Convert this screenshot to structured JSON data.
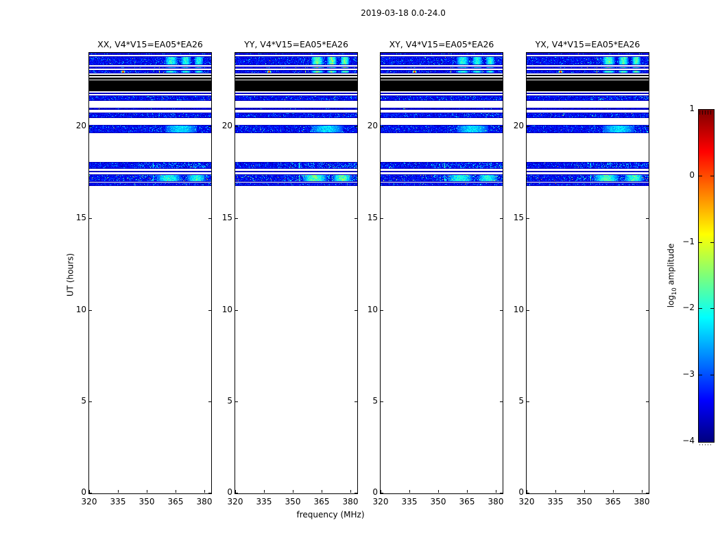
{
  "figure": {
    "title": "2019-03-18 0.0-24.0",
    "background": "#ffffff"
  },
  "axes": {
    "xlabel": "frequency (MHz)",
    "ylabel": "UT (hours)",
    "x_tick_labels": [
      "320",
      "335",
      "350",
      "365",
      "380"
    ],
    "y_tick_labels": [
      "0",
      "5",
      "10",
      "15",
      "20"
    ]
  },
  "panels": [
    {
      "name": "XX",
      "title": "XX, V4*V15=EA05*EA26"
    },
    {
      "name": "YY",
      "title": "YY, V4*V15=EA05*EA26"
    },
    {
      "name": "XY",
      "title": "XY, V4*V15=EA05*EA26"
    },
    {
      "name": "YX",
      "title": "YX, V4*V15=EA05*EA26"
    }
  ],
  "colorbar": {
    "label_prefix": "log",
    "label_sub": "10",
    "label_suffix": " amplitude",
    "tick_labels": [
      "1",
      "0",
      "−1",
      "−2",
      "−3",
      "−4"
    ],
    "colormap": "jet",
    "vmin": -4,
    "vmax": 1
  },
  "chart_data": {
    "type": "heatmap",
    "title": "2019-03-18 0.0-24.0",
    "subplot_titles": [
      "XX, V4*V15=EA05*EA26",
      "YY, V4*V15=EA05*EA26",
      "XY, V4*V15=EA05*EA26",
      "YX, V4*V15=EA05*EA26"
    ],
    "xlabel": "frequency (MHz)",
    "x_range_mhz": [
      320,
      383.5
    ],
    "x_ticks": [
      320,
      335,
      350,
      365,
      380
    ],
    "ylabel": "UT (hours)",
    "y_range_hours": [
      0,
      24
    ],
    "y_ticks": [
      0,
      5,
      10,
      15,
      20
    ],
    "legend_position": "right-colorbar",
    "grid": false,
    "colorbar": {
      "label": "log10 amplitude",
      "range": [
        -4,
        1
      ],
      "ticks": [
        1,
        0,
        -1,
        -2,
        -3,
        -4
      ],
      "colormap": "jet"
    },
    "emission_bands_ut_hours": [
      {
        "ut0": 23.87,
        "ut1": 24.0,
        "kind": "signal",
        "features": []
      },
      {
        "ut0": 23.33,
        "ut1": 23.81,
        "kind": "signal",
        "features": [
          "blobs"
        ]
      },
      {
        "ut0": 23.14,
        "ut1": 23.27,
        "kind": "signal",
        "features": [
          "blobs",
          "vline_yellow",
          "hotspot"
        ]
      },
      {
        "ut0": 22.88,
        "ut1": 23.07,
        "kind": "signal",
        "features": [
          "blobs",
          "vline_yellow",
          "hotspot"
        ]
      },
      {
        "ut0": 22.73,
        "ut1": 22.8,
        "kind": "flagged",
        "features": []
      },
      {
        "ut0": 22.56,
        "ut1": 22.64,
        "kind": "flagged",
        "features": []
      },
      {
        "ut0": 21.91,
        "ut1": 22.5,
        "kind": "flagged",
        "features": []
      },
      {
        "ut0": 21.76,
        "ut1": 21.85,
        "kind": "signal",
        "features": []
      },
      {
        "ut0": 21.37,
        "ut1": 21.68,
        "kind": "signal",
        "features": []
      },
      {
        "ut0": 20.9,
        "ut1": 21.01,
        "kind": "signal",
        "features": [
          "dim"
        ]
      },
      {
        "ut0": 20.45,
        "ut1": 20.75,
        "kind": "signal",
        "features": []
      },
      {
        "ut0": 19.63,
        "ut1": 20.07,
        "kind": "signal",
        "features": [
          "blob_mid"
        ]
      },
      {
        "ut0": 17.68,
        "ut1": 18.06,
        "kind": "signal",
        "features": [
          "cyan_boost",
          "vline_cyan"
        ]
      },
      {
        "ut0": 17.48,
        "ut1": 17.57,
        "kind": "signal",
        "features": [
          "vline_cyan"
        ]
      },
      {
        "ut0": 16.99,
        "ut1": 17.38,
        "kind": "signal",
        "features": [
          "cyan_boost",
          "sparkle",
          "vline_cyan",
          "blobs2"
        ]
      },
      {
        "ut0": 16.75,
        "ut1": 16.92,
        "kind": "signal",
        "features": []
      }
    ],
    "hotspot": {
      "freq_mhz": 337.5,
      "ut_hours": 22.97,
      "peak_log10_amp": 0.9
    },
    "rfi_lines_mhz": {
      "yellow_line": 356.4,
      "cyan_line": 353.0
    },
    "blob_freq_ranges_mhz": [
      [
        359.4,
        365.7
      ],
      [
        367.6,
        372.7
      ],
      [
        374.6,
        379.1
      ]
    ],
    "blob2_freq_ranges_mhz": [
      [
        354.9,
        367.6
      ],
      [
        370.8,
        380.3
      ]
    ],
    "blob_mid_freq_ranges_mhz": [
      [
        359.4,
        375.9
      ]
    ],
    "render": {
      "seeds": [
        101,
        202,
        303,
        404
      ],
      "blob_strength": [
        1.0,
        1.35,
        1.0,
        1.2
      ]
    }
  }
}
